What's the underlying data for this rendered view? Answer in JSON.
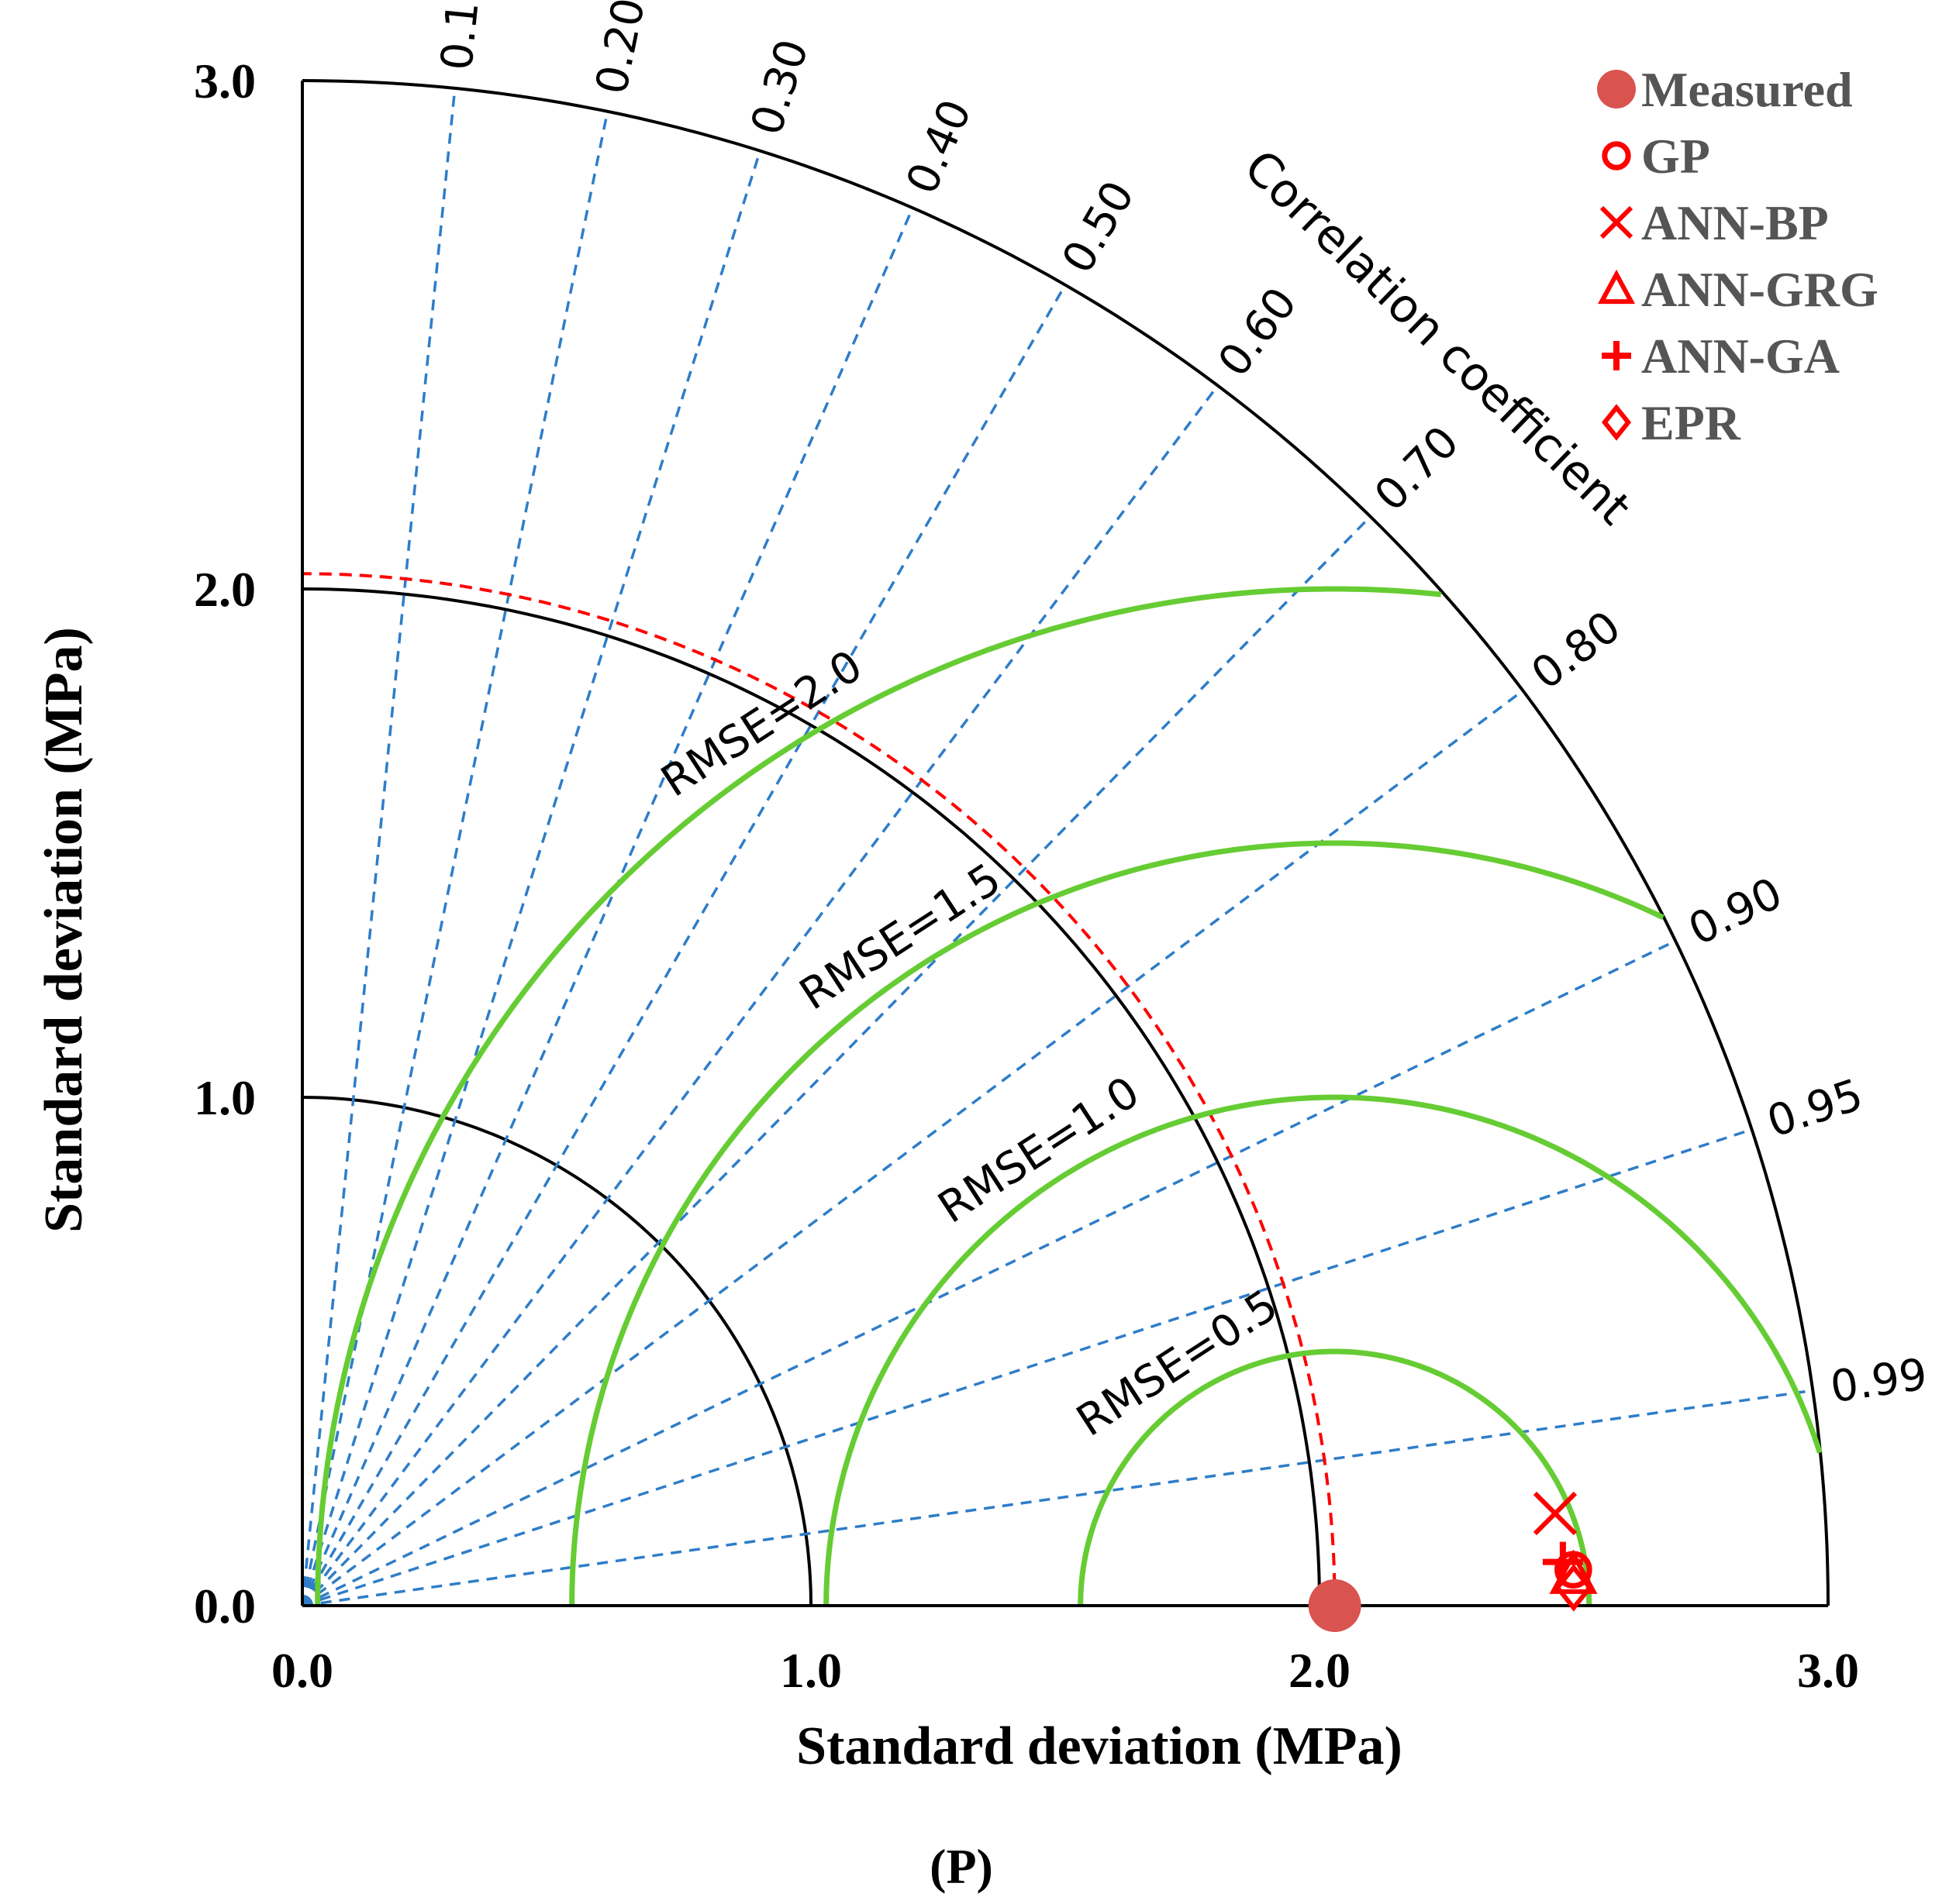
{
  "chart_data": {
    "type": "taylor_diagram",
    "panel_label": "(P)",
    "xlabel": "Standard deviation (MPa)",
    "ylabel": "Standard deviation (MPa)",
    "arc_label": "Correlation coefficient",
    "std_range": [
      0,
      3
    ],
    "x_ticks": [
      {
        "value": 0,
        "label": "0.0"
      },
      {
        "value": 1,
        "label": "1.0"
      },
      {
        "value": 2,
        "label": "2.0"
      },
      {
        "value": 3,
        "label": "3.0"
      }
    ],
    "y_ticks": [
      {
        "value": 0,
        "label": "0.0"
      },
      {
        "value": 1,
        "label": "1.0"
      },
      {
        "value": 2,
        "label": "2.0"
      },
      {
        "value": 3,
        "label": "3.0"
      }
    ],
    "std_arcs": [
      1,
      2,
      3
    ],
    "correlation_lines": [
      {
        "value": 0.1,
        "label": "0.10"
      },
      {
        "value": 0.2,
        "label": "0.20"
      },
      {
        "value": 0.3,
        "label": "0.30"
      },
      {
        "value": 0.4,
        "label": "0.40"
      },
      {
        "value": 0.5,
        "label": "0.50"
      },
      {
        "value": 0.6,
        "label": "0.60"
      },
      {
        "value": 0.7,
        "label": "0.70"
      },
      {
        "value": 0.8,
        "label": "0.80"
      },
      {
        "value": 0.9,
        "label": "0.90"
      },
      {
        "value": 0.95,
        "label": "0.95"
      },
      {
        "value": 0.99,
        "label": "0.99"
      }
    ],
    "reference_std": 2.03,
    "rmse_contours": [
      {
        "value": 0.5,
        "label": "RMSE=0.5"
      },
      {
        "value": 1.0,
        "label": "RMSE=1.0"
      },
      {
        "value": 1.5,
        "label": "RMSE=1.5"
      },
      {
        "value": 2.0,
        "label": "RMSE=2.0"
      }
    ],
    "series": [
      {
        "name": "Measured",
        "marker": "filled-circle",
        "std": 2.03,
        "corr": 1.0
      },
      {
        "name": "GP",
        "marker": "open-circle",
        "std": 2.5,
        "corr": 0.9996
      },
      {
        "name": "ANN-BP",
        "marker": "x",
        "std": 2.47,
        "corr": 0.9973
      },
      {
        "name": "ANN-GRG",
        "marker": "open-triangle",
        "std": 2.5,
        "corr": 0.9997
      },
      {
        "name": "ANN-GA",
        "marker": "plus",
        "std": 2.48,
        "corr": 0.9994
      },
      {
        "name": "EPR",
        "marker": "open-diamond",
        "std": 2.5,
        "corr": 0.9999
      }
    ],
    "legend_position": "top-right",
    "colors": {
      "axis": "#000000",
      "correlation_line": "#2E7DC8",
      "rmse_contour": "#66CC33",
      "reference_arc": "#FF0000",
      "measured": "#D9534F",
      "models": "#FF0000"
    }
  }
}
